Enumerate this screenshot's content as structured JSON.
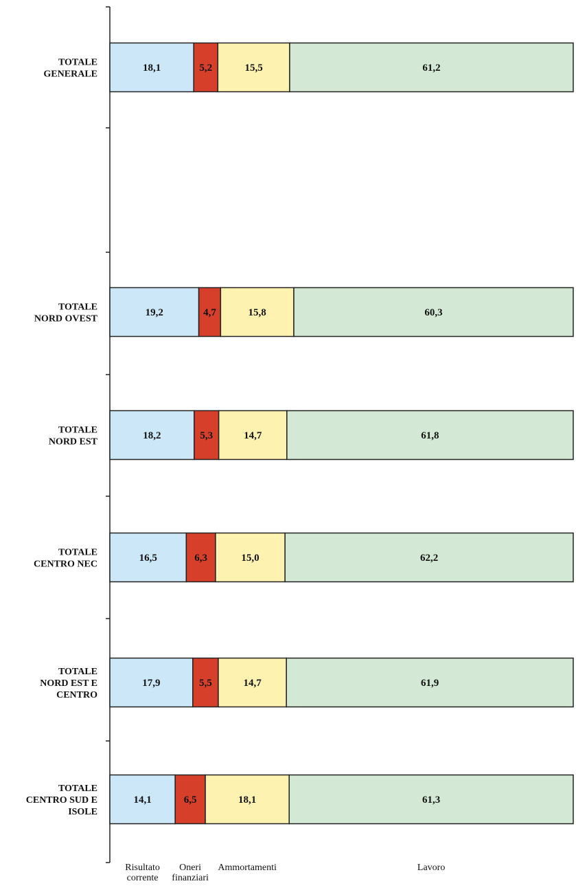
{
  "chart_data": {
    "type": "bar",
    "orientation": "horizontal",
    "stacked": true,
    "percent": true,
    "grid": false,
    "legend_position": "bottom",
    "categories": [
      [
        "TOTALE",
        "GENERALE"
      ],
      [
        "TOTALE",
        "NORD OVEST"
      ],
      [
        "TOTALE",
        "NORD EST"
      ],
      [
        "TOTALE",
        "CENTRO NEC"
      ],
      [
        "TOTALE",
        "NORD EST E",
        "CENTRO"
      ],
      [
        "TOTALE",
        "CENTRO SUD E",
        "ISOLE"
      ]
    ],
    "series": [
      {
        "name": [
          "Risultato",
          "corrente"
        ],
        "color": "#cce8f8",
        "values": [
          18.1,
          19.2,
          18.2,
          16.5,
          17.9,
          14.1
        ],
        "labels": [
          "18,1",
          "19,2",
          "18,2",
          "16,5",
          "17,9",
          "14,1"
        ]
      },
      {
        "name": [
          "Oneri",
          "finanziari"
        ],
        "color": "#d6402b",
        "values": [
          5.2,
          4.7,
          5.3,
          6.3,
          5.5,
          6.5
        ],
        "labels": [
          "5,2",
          "4,7",
          "5,3",
          "6,3",
          "5,5",
          "6,5"
        ]
      },
      {
        "name": [
          "Ammortamenti"
        ],
        "color": "#fdf2b0",
        "values": [
          15.5,
          15.8,
          14.7,
          15.0,
          14.7,
          18.1
        ],
        "labels": [
          "15,5",
          "15,8",
          "14,7",
          "15,0",
          "14,7",
          "18,1"
        ]
      },
      {
        "name": [
          "Lavoro"
        ],
        "color": "#d3e9d5",
        "values": [
          61.2,
          60.3,
          61.8,
          62.2,
          61.9,
          61.3
        ],
        "labels": [
          "61,2",
          "60,3",
          "61,8",
          "62,2",
          "61,9",
          "61,3"
        ]
      }
    ]
  }
}
